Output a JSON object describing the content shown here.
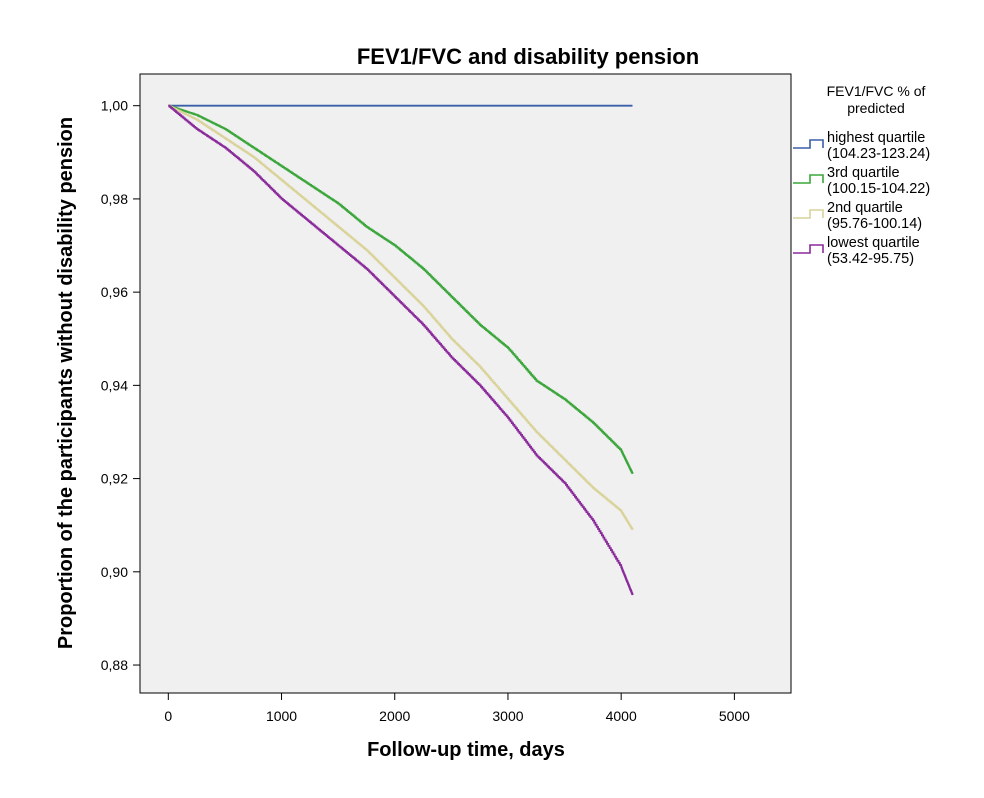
{
  "chart_data": {
    "type": "line",
    "title": "FEV1/FVC and disability pension",
    "xlabel": "Follow-up time, days",
    "ylabel": "Proportion of the participants without disability pension",
    "xlim": [
      -250,
      5500
    ],
    "ylim": [
      0.874,
      1.0068
    ],
    "x_ticks": [
      0,
      1000,
      2000,
      3000,
      4000,
      5000
    ],
    "x_tick_labels": [
      "0",
      "1000",
      "2000",
      "3000",
      "4000",
      "5000"
    ],
    "y_ticks": [
      0.88,
      0.9,
      0.92,
      0.94,
      0.96,
      0.98,
      1.0
    ],
    "y_tick_labels": [
      "0,88",
      "0,90",
      "0,92",
      "0,94",
      "0,96",
      "0,98",
      "1,00"
    ],
    "legend": {
      "title_lines": [
        "FEV1/FVC % of",
        "predicted"
      ],
      "position": "right"
    },
    "series": [
      {
        "name_lines": [
          "highest quartile",
          "(104.23-123.24)"
        ],
        "color": "#3b5fa8",
        "x": [
          0,
          4100
        ],
        "y": [
          1.0,
          1.0
        ]
      },
      {
        "name_lines": [
          "3rd quartile",
          "(100.15-104.22)"
        ],
        "color": "#3aa63a",
        "x": [
          0,
          250,
          500,
          750,
          1000,
          1250,
          1500,
          1750,
          2000,
          2250,
          2500,
          2750,
          3000,
          3250,
          3500,
          3750,
          4000,
          4100
        ],
        "y": [
          1.0,
          0.998,
          0.995,
          0.991,
          0.987,
          0.983,
          0.979,
          0.974,
          0.97,
          0.965,
          0.959,
          0.953,
          0.948,
          0.941,
          0.937,
          0.932,
          0.926,
          0.921
        ]
      },
      {
        "name_lines": [
          "2nd quartile",
          "(95.76-100.14)"
        ],
        "color": "#d9d39a",
        "x": [
          0,
          250,
          500,
          750,
          1000,
          1250,
          1500,
          1750,
          2000,
          2250,
          2500,
          2750,
          3000,
          3250,
          3500,
          3750,
          4000,
          4100
        ],
        "y": [
          1.0,
          0.997,
          0.993,
          0.989,
          0.984,
          0.979,
          0.974,
          0.969,
          0.963,
          0.957,
          0.95,
          0.944,
          0.937,
          0.93,
          0.924,
          0.918,
          0.913,
          0.909
        ]
      },
      {
        "name_lines": [
          "lowest quartile",
          "(53.42-95.75)"
        ],
        "color": "#8a2a9a",
        "x": [
          0,
          250,
          500,
          750,
          1000,
          1250,
          1500,
          1750,
          2000,
          2250,
          2500,
          2750,
          3000,
          3250,
          3500,
          3750,
          4000,
          4100
        ],
        "y": [
          1.0,
          0.995,
          0.991,
          0.986,
          0.98,
          0.975,
          0.97,
          0.965,
          0.959,
          0.953,
          0.946,
          0.94,
          0.933,
          0.925,
          0.919,
          0.911,
          0.901,
          0.895
        ]
      }
    ]
  }
}
